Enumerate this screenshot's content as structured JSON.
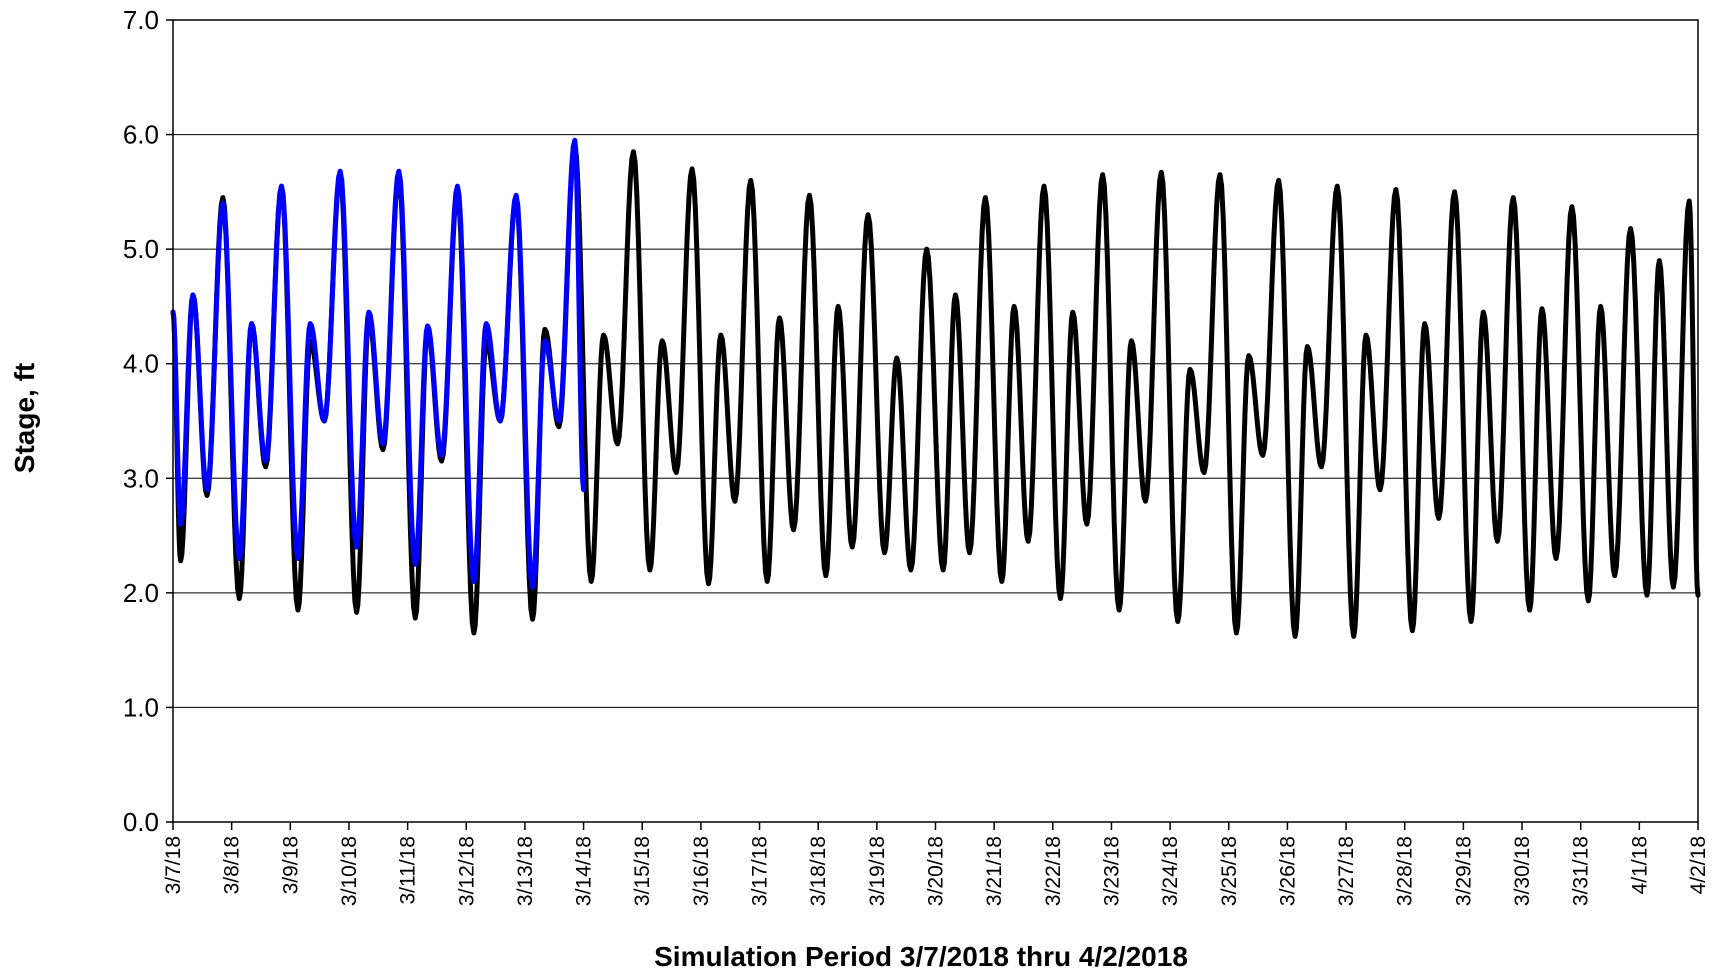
{
  "chart_data": {
    "type": "line",
    "title": "",
    "xlabel": "Simulation Period 3/7/2018 thru 4/2/2018",
    "ylabel": "Stage, ft",
    "ylim": [
      0.0,
      7.0
    ],
    "yticks": [
      "0.0",
      "1.0",
      "2.0",
      "3.0",
      "4.0",
      "5.0",
      "6.0",
      "7.0"
    ],
    "xticks": [
      "3/7/18",
      "3/8/18",
      "3/9/18",
      "3/10/18",
      "3/11/18",
      "3/12/18",
      "3/13/18",
      "3/14/18",
      "3/15/18",
      "3/16/18",
      "3/17/18",
      "3/18/18",
      "3/19/18",
      "3/20/18",
      "3/21/18",
      "3/22/18",
      "3/23/18",
      "3/24/18",
      "3/25/18",
      "3/26/18",
      "3/27/18",
      "3/28/18",
      "3/29/18",
      "3/30/18",
      "3/31/18",
      "4/1/18",
      "4/2/18"
    ],
    "grid": true,
    "legend": "none",
    "series": [
      {
        "color": "#000000",
        "x_start": "3/7/18",
        "x_end": "4/2/18",
        "high_peaks": [
          5.45,
          5.55,
          5.65,
          5.65,
          5.5,
          5.45,
          5.9,
          5.85,
          5.7,
          5.6,
          5.47,
          5.3,
          5.0,
          5.45,
          5.55,
          5.65,
          5.67,
          5.65,
          5.6,
          5.55,
          5.52,
          5.5,
          5.45,
          5.37,
          5.18,
          5.42
        ],
        "low_troughs": [
          2.28,
          1.95,
          1.85,
          1.83,
          1.78,
          1.65,
          1.77,
          2.1,
          2.2,
          2.08,
          2.1,
          2.15,
          2.35,
          2.2,
          2.1,
          1.95,
          1.85,
          1.75,
          1.65,
          1.62,
          1.62,
          1.67,
          1.75,
          1.85,
          1.93,
          1.98
        ],
        "secondary_peaks": [
          4.6,
          4.35,
          4.2,
          4.4,
          4.3,
          4.2,
          4.3,
          4.25,
          4.2,
          4.25,
          4.4,
          4.5,
          4.05,
          4.6,
          4.5,
          4.45,
          4.2,
          3.95,
          4.07,
          4.15,
          4.25,
          4.35,
          4.45,
          4.48,
          4.5,
          4.9
        ],
        "secondary_troughs": [
          2.85,
          3.1,
          3.5,
          3.25,
          3.15,
          3.5,
          3.45,
          3.3,
          3.05,
          2.8,
          2.55,
          2.4,
          2.2,
          2.35,
          2.45,
          2.6,
          2.8,
          3.05,
          3.2,
          3.1,
          2.9,
          2.65,
          2.45,
          2.3,
          2.15,
          2.05
        ]
      },
      {
        "color": "#0000FF",
        "x_start": "3/7/18",
        "x_end": "3/14/18",
        "high_peaks": [
          5.4,
          5.55,
          5.68,
          5.68,
          5.55,
          5.47,
          5.95
        ],
        "low_troughs": [
          2.6,
          2.3,
          2.3,
          2.4,
          2.25,
          2.1,
          2.05,
          2.9
        ],
        "secondary_peaks": [
          4.6,
          4.35,
          4.35,
          4.45,
          4.33,
          4.35
        ],
        "secondary_troughs": [
          2.9,
          3.15,
          3.5,
          3.3,
          3.2,
          3.5,
          3.5
        ]
      }
    ]
  }
}
